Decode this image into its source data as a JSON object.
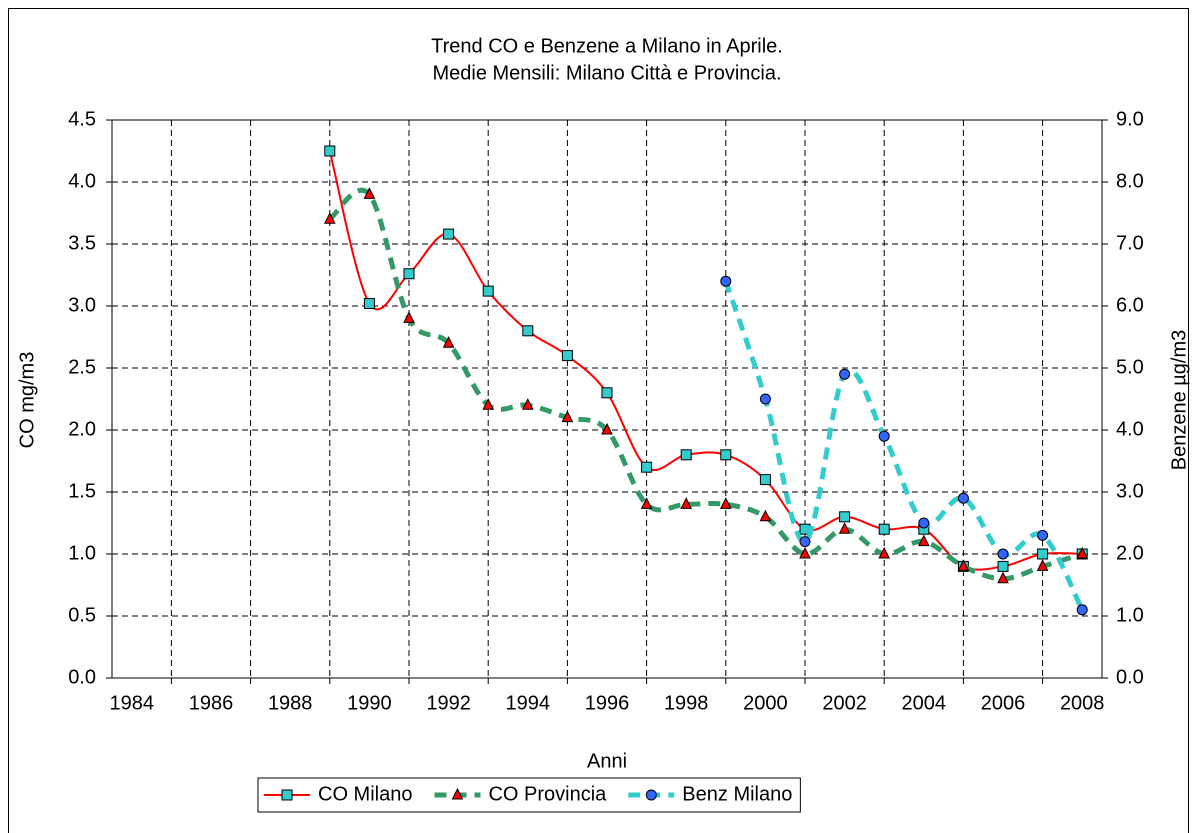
{
  "chart_data": {
    "type": "line",
    "title": "Trend CO e Benzene a Milano in Aprile.",
    "subtitle": "Medie Mensili: Milano Città e Provincia.",
    "xlabel": "Anni",
    "ylabel": "CO mg/m3",
    "y2label": "Benzene µg/m3",
    "x": [
      1989,
      1990,
      1991,
      1992,
      1993,
      1994,
      1995,
      1996,
      1997,
      1998,
      1999,
      2000,
      2001,
      2002,
      2003,
      2004,
      2005,
      2006,
      2007,
      2008
    ],
    "series": [
      {
        "name": "CO Milano",
        "color": "#ff0000",
        "marker": "square",
        "marker_color": "#33cccc",
        "dashed": false,
        "smooth": true,
        "values": [
          4.25,
          3.02,
          3.26,
          3.58,
          3.12,
          2.8,
          2.6,
          2.3,
          1.7,
          1.8,
          1.8,
          1.6,
          1.2,
          1.3,
          1.2,
          1.2,
          0.9,
          0.9,
          1.0,
          1.0
        ]
      },
      {
        "name": "CO Provincia",
        "color": "#339966",
        "marker": "triangle",
        "marker_color": "#ff0000",
        "dashed": true,
        "smooth": true,
        "values": [
          3.7,
          3.9,
          2.9,
          2.7,
          2.2,
          2.2,
          2.1,
          2.0,
          1.4,
          1.4,
          1.4,
          1.3,
          1.0,
          1.2,
          1.0,
          1.1,
          0.9,
          0.8,
          0.9,
          1.0
        ]
      },
      {
        "name": "Benz Milano",
        "color": "#33cccc",
        "marker": "circle",
        "marker_color": "#3366ff",
        "dashed": true,
        "smooth": true,
        "axis": "y2",
        "values": [
          null,
          null,
          null,
          null,
          null,
          null,
          null,
          null,
          null,
          null,
          6.4,
          4.5,
          2.2,
          4.9,
          3.9,
          2.5,
          2.9,
          2.0,
          2.3,
          1.1
        ]
      }
    ],
    "xlim": [
      1983.5,
      2008.5
    ],
    "xticks": [
      1984,
      1986,
      1988,
      1990,
      1992,
      1994,
      1996,
      1998,
      2000,
      2002,
      2004,
      2006,
      2008
    ],
    "ylim": [
      0,
      4.5
    ],
    "yticks": [
      {
        "value": 0,
        "label": "0.0"
      },
      0.5,
      {
        "value": 1,
        "label": "1.0"
      },
      1.5,
      {
        "value": 2,
        "label": "2.0"
      },
      2.5,
      {
        "value": 3,
        "label": "3.0"
      },
      3.5,
      {
        "value": 4,
        "label": "4.0"
      },
      4.5
    ],
    "y2lim": [
      0,
      9
    ],
    "y2ticks": [
      {
        "value": 0,
        "label": "0.0"
      },
      {
        "value": 1,
        "label": "1.0"
      },
      {
        "value": 2,
        "label": "2.0"
      },
      {
        "value": 3,
        "label": "3.0"
      },
      {
        "value": 4,
        "label": "4.0"
      },
      {
        "value": 5,
        "label": "5.0"
      },
      {
        "value": 6,
        "label": "6.0"
      },
      {
        "value": 7,
        "label": "7.0"
      },
      {
        "value": 8,
        "label": "8.0"
      },
      {
        "value": 9,
        "label": "9.0"
      }
    ],
    "grid": true,
    "legend": "bottom"
  }
}
